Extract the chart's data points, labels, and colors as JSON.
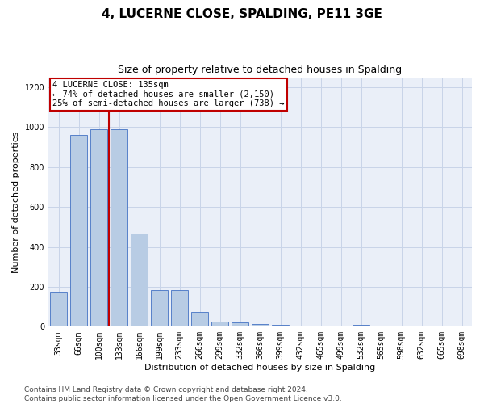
{
  "title": "4, LUCERNE CLOSE, SPALDING, PE11 3GE",
  "subtitle": "Size of property relative to detached houses in Spalding",
  "xlabel": "Distribution of detached houses by size in Spalding",
  "ylabel": "Number of detached properties",
  "categories": [
    "33sqm",
    "66sqm",
    "100sqm",
    "133sqm",
    "166sqm",
    "199sqm",
    "233sqm",
    "266sqm",
    "299sqm",
    "332sqm",
    "366sqm",
    "399sqm",
    "432sqm",
    "465sqm",
    "499sqm",
    "532sqm",
    "565sqm",
    "598sqm",
    "632sqm",
    "665sqm",
    "698sqm"
  ],
  "values": [
    170,
    960,
    990,
    990,
    465,
    185,
    185,
    75,
    25,
    20,
    15,
    8,
    0,
    0,
    0,
    10,
    0,
    0,
    0,
    0,
    0
  ],
  "bar_color": "#b8cce4",
  "bar_edge_color": "#4472c4",
  "vline_x": 2.5,
  "vline_color": "#c00000",
  "annotation_text": "4 LUCERNE CLOSE: 135sqm\n← 74% of detached houses are smaller (2,150)\n25% of semi-detached houses are larger (738) →",
  "annotation_box_color": "#ffffff",
  "annotation_box_edge": "#c00000",
  "ylim": [
    0,
    1250
  ],
  "yticks": [
    0,
    200,
    400,
    600,
    800,
    1000,
    1200
  ],
  "footer": "Contains HM Land Registry data © Crown copyright and database right 2024.\nContains public sector information licensed under the Open Government Licence v3.0.",
  "title_fontsize": 11,
  "subtitle_fontsize": 9,
  "axis_label_fontsize": 8,
  "tick_fontsize": 7,
  "footer_fontsize": 6.5,
  "background_color": "#ffffff",
  "plot_bg_color": "#eaeff8",
  "grid_color": "#c8d4e8"
}
